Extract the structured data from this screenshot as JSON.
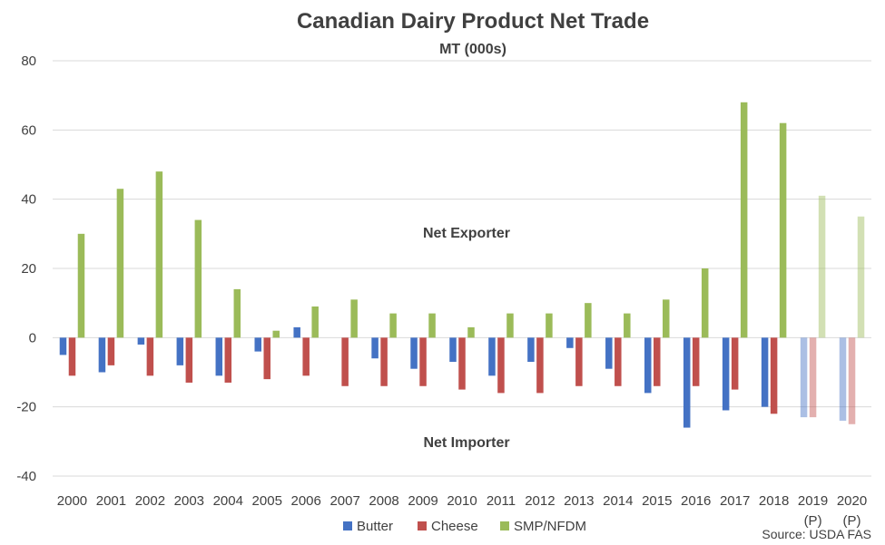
{
  "chart_data": {
    "type": "bar",
    "title": "Canadian Dairy Product Net Trade",
    "subtitle": "MT (000s)",
    "ylim": [
      -40,
      80
    ],
    "yticks": [
      -40,
      -20,
      0,
      20,
      40,
      60,
      80
    ],
    "grid": true,
    "legend_position": "bottom",
    "categories": [
      "2000",
      "2001",
      "2002",
      "2003",
      "2004",
      "2005",
      "2006",
      "2007",
      "2008",
      "2009",
      "2010",
      "2011",
      "2012",
      "2013",
      "2014",
      "2015",
      "2016",
      "2017",
      "2018",
      "2019",
      "2020"
    ],
    "category_sublabels": [
      "",
      "",
      "",
      "",
      "",
      "",
      "",
      "",
      "",
      "",
      "",
      "",
      "",
      "",
      "",
      "",
      "",
      "",
      "",
      "(P)",
      "(P)"
    ],
    "projected_from_index": 19,
    "series": [
      {
        "name": "Butter",
        "color": "#4472C4",
        "values": [
          -5,
          -10,
          -2,
          -8,
          -11,
          -4,
          3,
          0,
          -6,
          -9,
          -7,
          -11,
          -7,
          -3,
          -9,
          -16,
          -26,
          -21,
          -20,
          -23,
          -24
        ]
      },
      {
        "name": "Cheese",
        "color": "#C0504D",
        "values": [
          -11,
          -8,
          -11,
          -13,
          -13,
          -12,
          -11,
          -14,
          -14,
          -14,
          -15,
          -16,
          -16,
          -14,
          -14,
          -14,
          -14,
          -15,
          -22,
          -23,
          -25
        ]
      },
      {
        "name": "SMP/NFDM",
        "color": "#9BBB59",
        "values": [
          30,
          43,
          48,
          34,
          14,
          2,
          9,
          11,
          7,
          7,
          3,
          7,
          7,
          10,
          7,
          11,
          20,
          68,
          62,
          41,
          35
        ]
      }
    ],
    "annotations": {
      "upper": "Net Exporter",
      "lower": "Net Importer"
    },
    "source": "Source: USDA FAS"
  }
}
